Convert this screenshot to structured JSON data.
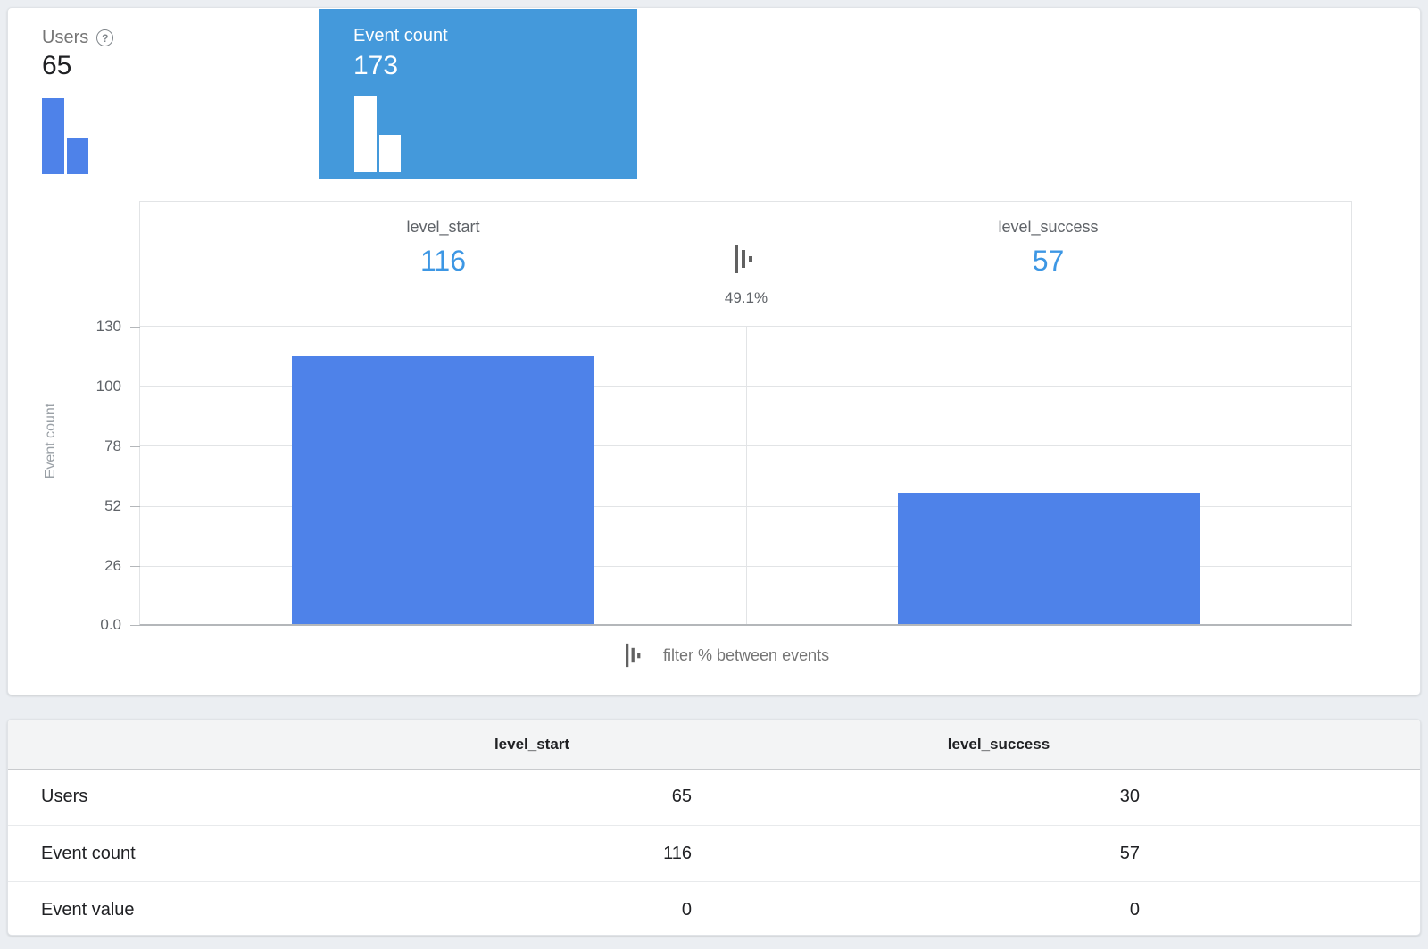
{
  "metrics": {
    "users": {
      "label": "Users",
      "value": "65",
      "help": "?"
    },
    "event_count": {
      "label": "Event count",
      "value": "173"
    }
  },
  "chart": {
    "between_pct": "49.1%",
    "caption": "filter % between events",
    "ylabel": "Event count",
    "yticks": [
      "130",
      "100",
      "78",
      "52",
      "26",
      "0.0"
    ]
  },
  "chart_data": {
    "type": "bar",
    "categories": [
      "level_start",
      "level_success"
    ],
    "values": [
      116,
      57
    ],
    "value_labels": [
      "116",
      "57"
    ],
    "ylabel": "Event count",
    "ylim": [
      0,
      130
    ],
    "ytick_labels": [
      "0.0",
      "26",
      "52",
      "78",
      "100",
      "130"
    ],
    "annotations": {
      "between_events_pct": "49.1%"
    },
    "bar_color": "#4e82e9"
  },
  "table": {
    "columns": [
      "level_start",
      "level_success"
    ],
    "rows": [
      {
        "label": "Users",
        "values": [
          "65",
          "30"
        ]
      },
      {
        "label": "Event count",
        "values": [
          "116",
          "57"
        ]
      },
      {
        "label": "Event value",
        "values": [
          "0",
          "0"
        ]
      }
    ]
  }
}
